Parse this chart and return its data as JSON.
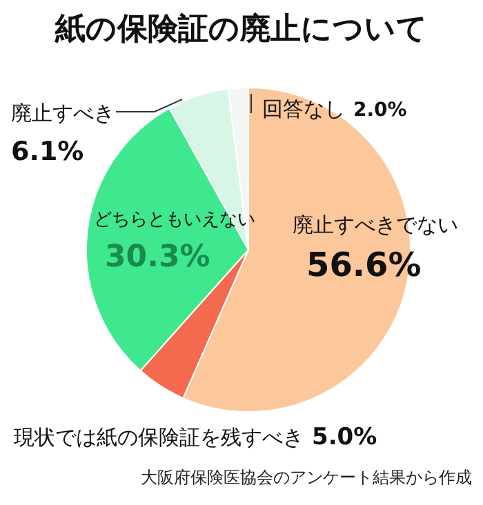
{
  "chart_data": {
    "type": "pie",
    "title": "紙の保険証の廃止について",
    "categories": [
      "廃止すべきでない",
      "現状では紙の保険証を残すべき",
      "どちらともいえない",
      "廃止すべき",
      "回答なし"
    ],
    "values": [
      56.6,
      5.0,
      30.3,
      6.1,
      2.0
    ],
    "value_labels": [
      "56.6%",
      "5.0%",
      "30.3%",
      "6.1%",
      "2.0%"
    ],
    "colors": [
      "#fbc79b",
      "#f36a4e",
      "#3fe88e",
      "#d8f6e6",
      "#f4f6f5"
    ],
    "legend": false,
    "annotations": [
      "大阪府保険医協会のアンケート結果から作成"
    ]
  }
}
